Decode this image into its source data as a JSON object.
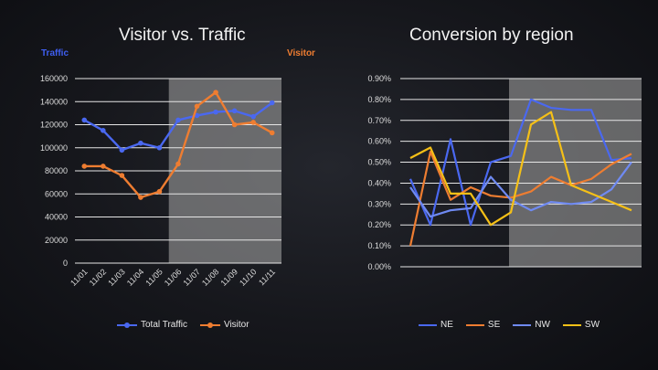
{
  "chart_data": [
    {
      "type": "line",
      "title": "Visitor vs. Traffic",
      "y_axis_left_label": "Traffic",
      "y_axis_right_label": "Visitor",
      "categories": [
        "11/01",
        "11/02",
        "11/03",
        "11/04",
        "11/05",
        "11/06",
        "11/07",
        "11/08",
        "11/09",
        "11/10",
        "11/11"
      ],
      "ylim": [
        0,
        160000
      ],
      "yticks": [
        "0",
        "20000",
        "40000",
        "60000",
        "80000",
        "100000",
        "120000",
        "140000",
        "160000"
      ],
      "highlight_range": [
        "11/06",
        "11/11"
      ],
      "series": [
        {
          "name": "Total Traffic",
          "axis": "left",
          "color": "#4a68f0",
          "markers": true,
          "values": [
            124000,
            115000,
            98000,
            104000,
            100000,
            124000,
            128000,
            131000,
            132000,
            127000,
            139000
          ]
        },
        {
          "name": "Visitor",
          "axis": "left",
          "color": "#ee7d31",
          "markers": true,
          "values": [
            84000,
            84000,
            76000,
            57000,
            62000,
            86000,
            136000,
            148000,
            120000,
            122000,
            113000
          ]
        }
      ],
      "legend": "bottom"
    },
    {
      "type": "line",
      "title": "Conversion by region",
      "x_points": 12,
      "ylim": [
        0.0,
        0.9
      ],
      "yticks": [
        "0.00%",
        "0.10%",
        "0.20%",
        "0.30%",
        "0.40%",
        "0.50%",
        "0.60%",
        "0.70%",
        "0.80%",
        "0.90%"
      ],
      "highlight_range": [
        5,
        11
      ],
      "series": [
        {
          "name": "NE",
          "color": "#4a68f0",
          "values": [
            0.42,
            0.2,
            0.61,
            0.2,
            0.5,
            0.53,
            0.8,
            0.76,
            0.75,
            0.75,
            0.51,
            0.52
          ]
        },
        {
          "name": "SE",
          "color": "#ee7d31",
          "values": [
            0.1,
            0.55,
            0.32,
            0.38,
            0.34,
            0.33,
            0.36,
            0.43,
            0.39,
            0.42,
            0.49,
            0.54
          ]
        },
        {
          "name": "NW",
          "color": "#6f8af2",
          "values": [
            0.38,
            0.24,
            0.27,
            0.28,
            0.43,
            0.32,
            0.27,
            0.31,
            0.3,
            0.31,
            0.37,
            0.5
          ]
        },
        {
          "name": "SW",
          "color": "#f5c017",
          "values": [
            0.52,
            0.57,
            0.35,
            0.35,
            0.2,
            0.26,
            0.68,
            0.74,
            0.39,
            0.35,
            0.31,
            0.27
          ]
        }
      ],
      "legend": "bottom"
    }
  ]
}
